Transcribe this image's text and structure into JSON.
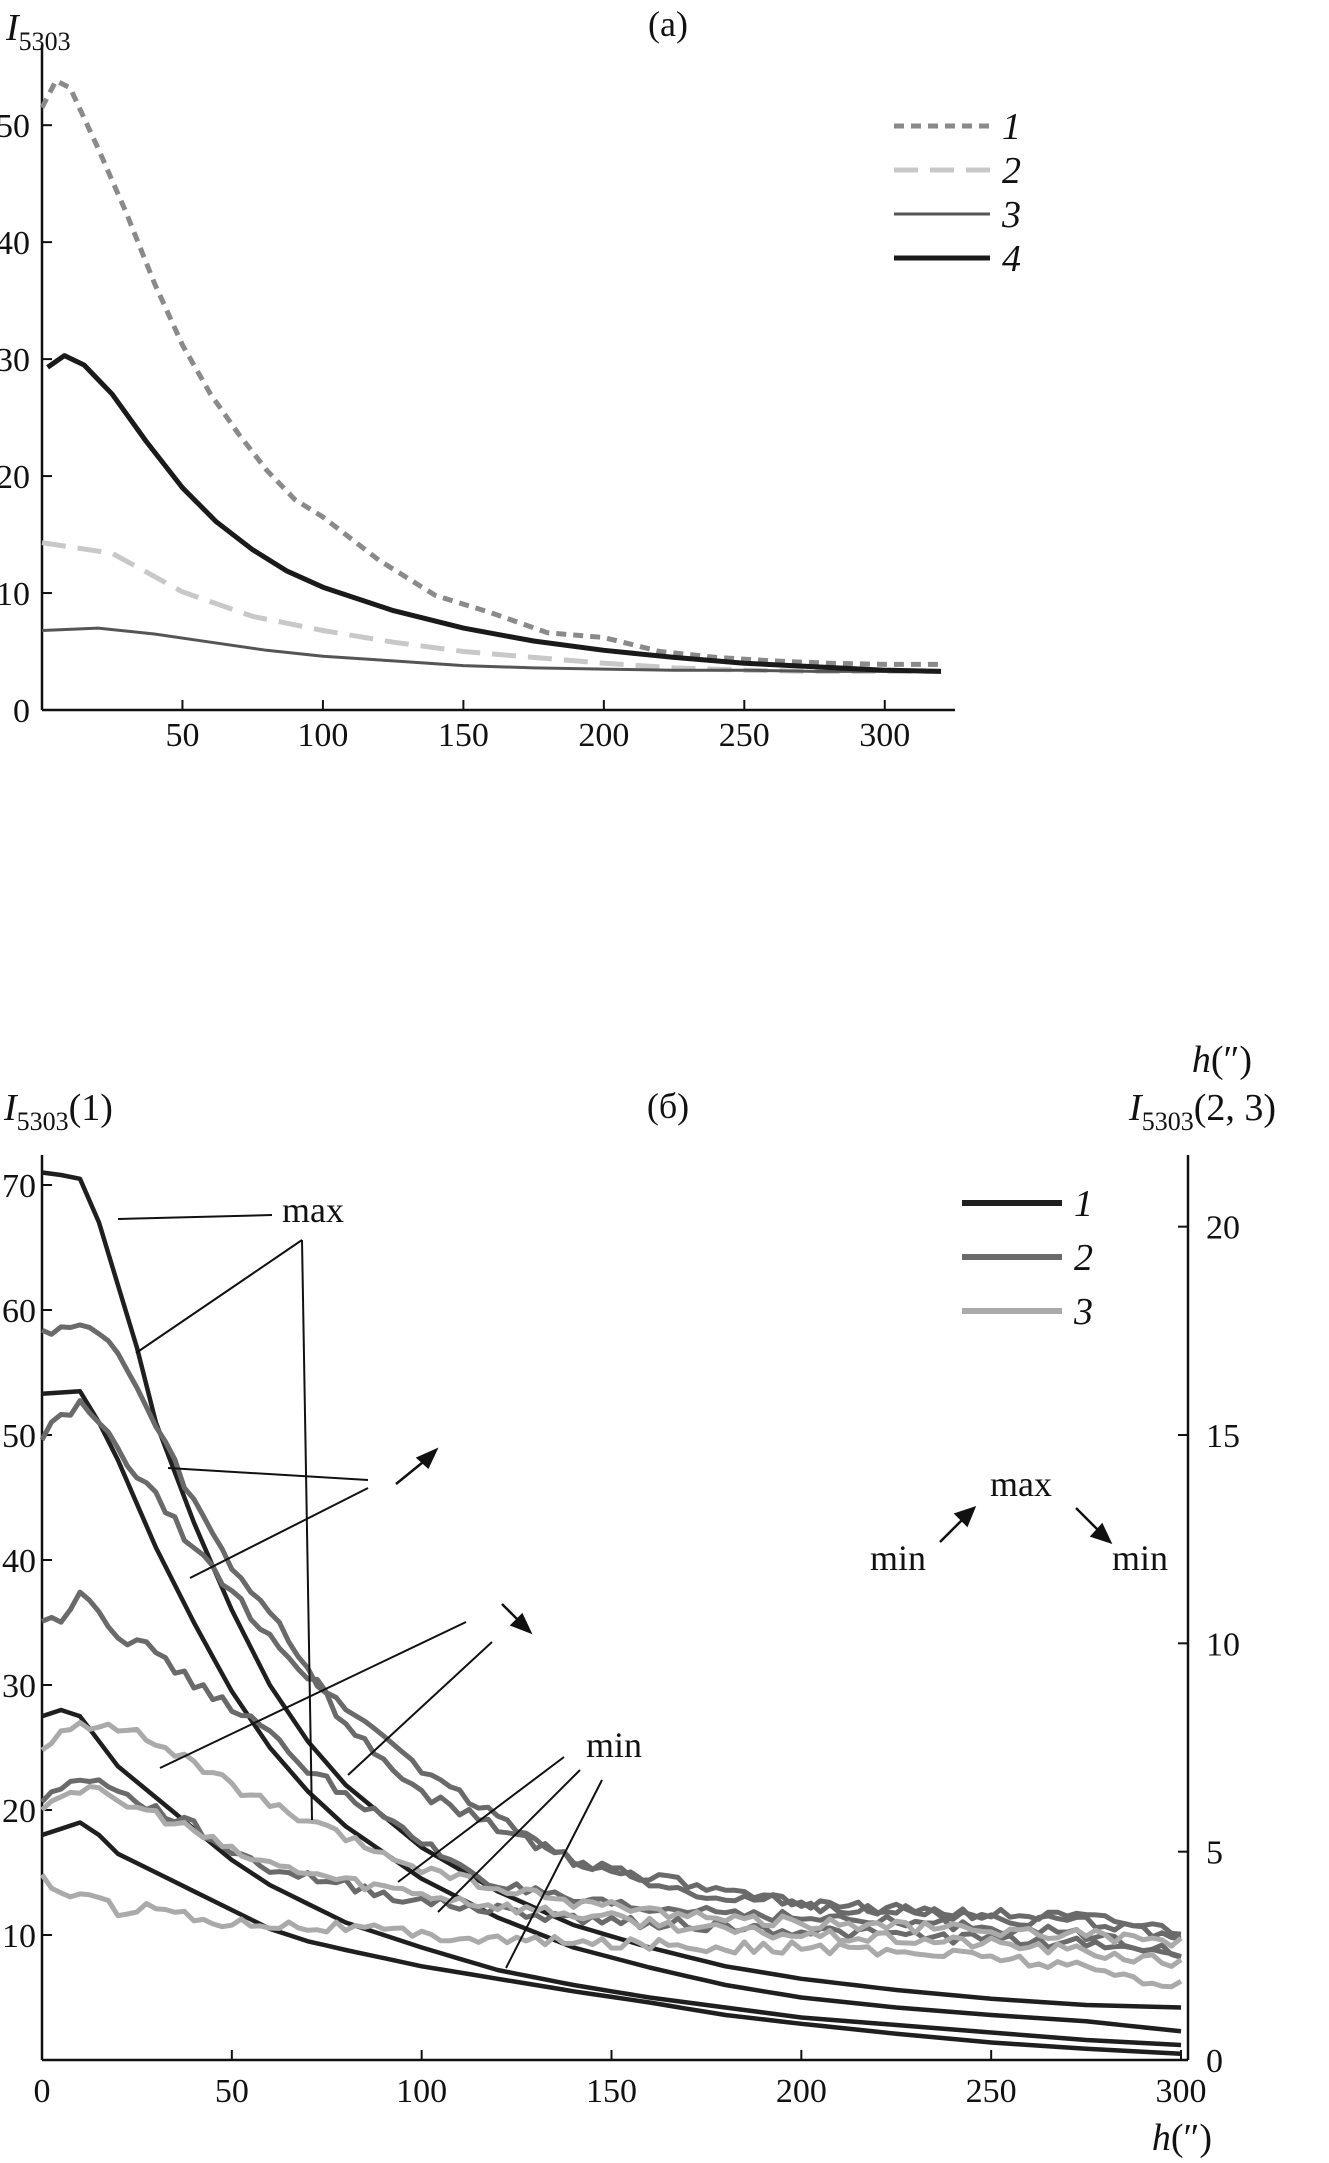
{
  "chart_data": [
    {
      "type": "line",
      "panel_label": "(a)",
      "ylabel_main": "I",
      "ylabel_sub": "5303",
      "xlabel_main": "h",
      "xlabel_unit": "(″)",
      "xlim": [
        0,
        325
      ],
      "ylim": [
        0,
        56
      ],
      "xticks": [
        50,
        100,
        150,
        200,
        250,
        300
      ],
      "yticks": [
        0,
        10,
        20,
        30,
        40,
        50
      ],
      "legend_position": "top-right",
      "series": [
        {
          "name": "1",
          "color": "#8a8a8a",
          "dash": "10,7",
          "width": 5,
          "x": [
            0,
            5,
            10,
            20,
            30,
            40,
            50,
            60,
            70,
            80,
            90,
            100,
            120,
            140,
            160,
            180,
            200,
            220,
            240,
            260,
            280,
            300,
            320
          ],
          "y": [
            51.5,
            53.8,
            53.2,
            48,
            42.5,
            36.5,
            31.2,
            27,
            23.6,
            20.5,
            18,
            16.5,
            12.8,
            9.8,
            8.3,
            6.6,
            6.2,
            5,
            4.5,
            4.2,
            4.0,
            3.9,
            3.9
          ]
        },
        {
          "name": "2",
          "color": "#c8c8c8",
          "dash": "24,12",
          "width": 5,
          "x": [
            0,
            25,
            50,
            75,
            100,
            125,
            150,
            175,
            200,
            225,
            250,
            275,
            300,
            320
          ],
          "y": [
            14.3,
            13.4,
            10.1,
            8,
            6.8,
            5.8,
            5.0,
            4.5,
            4.0,
            3.6,
            3.4,
            3.3,
            3.3,
            3.3
          ]
        },
        {
          "name": "3",
          "color": "#555555",
          "dash": "",
          "width": 3,
          "x": [
            0,
            20,
            40,
            60,
            80,
            100,
            125,
            150,
            175,
            200,
            225,
            250,
            275,
            300,
            320
          ],
          "y": [
            6.8,
            7.0,
            6.5,
            5.8,
            5.1,
            4.6,
            4.2,
            3.8,
            3.6,
            3.5,
            3.4,
            3.4,
            3.3,
            3.3,
            3.3
          ]
        },
        {
          "name": "4",
          "color": "#1a1a1a",
          "dash": "",
          "width": 5,
          "x": [
            2,
            8,
            15,
            25,
            37,
            50,
            62,
            75,
            87,
            100,
            125,
            150,
            175,
            200,
            225,
            250,
            275,
            300,
            320
          ],
          "y": [
            29.3,
            30.3,
            29.5,
            27,
            23,
            19,
            16.1,
            13.7,
            11.9,
            10.5,
            8.5,
            7.0,
            5.9,
            5.1,
            4.5,
            4.0,
            3.7,
            3.4,
            3.3
          ]
        }
      ]
    },
    {
      "type": "line",
      "panel_label": "(б)",
      "ylabel_left_main": "I",
      "ylabel_left_sub": "5303",
      "ylabel_left_suffix": "(1)",
      "ylabel_right_main": "I",
      "ylabel_right_sub": "5303",
      "ylabel_right_suffix": "(2, 3)",
      "xlabel_main": "h",
      "xlabel_unit": "(″)",
      "xlim": [
        0,
        300
      ],
      "ylim_left": [
        0,
        72
      ],
      "ylim_right": [
        0,
        21.6
      ],
      "xticks": [
        0,
        50,
        100,
        150,
        200,
        250,
        300
      ],
      "yticks_left": [
        10,
        20,
        30,
        40,
        50,
        60,
        70
      ],
      "yticks_right": [
        0,
        5,
        10,
        15,
        20
      ],
      "legend_position": "top-right",
      "legend": [
        {
          "name": "1",
          "color": "#1f1f1f"
        },
        {
          "name": "2",
          "color": "#6a6a6a"
        },
        {
          "name": "3",
          "color": "#aaaaaa"
        }
      ],
      "annotations": [
        {
          "text": "max"
        },
        {
          "text": "min"
        },
        {
          "text": "max"
        },
        {
          "text": "min"
        },
        {
          "text": "min"
        }
      ],
      "series": [
        {
          "name": "1",
          "axis": "left",
          "color": "#1f1f1f",
          "x": [
            0,
            5,
            10,
            15,
            20,
            25,
            30,
            40,
            50,
            60,
            70,
            80,
            100,
            120,
            140,
            160,
            180,
            200,
            225,
            250,
            275,
            300
          ],
          "y": [
            71,
            70.8,
            70.5,
            67,
            62,
            57,
            51,
            43,
            36,
            30,
            25.5,
            22,
            17,
            13.5,
            10.8,
            9,
            7.5,
            6.5,
            5.6,
            4.9,
            4.4,
            4.2
          ]
        },
        {
          "name": "1",
          "axis": "left",
          "color": "#1f1f1f",
          "x": [
            0,
            5,
            10,
            15,
            20,
            30,
            40,
            50,
            60,
            70,
            80,
            100,
            120,
            140,
            160,
            180,
            200,
            225,
            250,
            275,
            300
          ],
          "y": [
            53.3,
            53.4,
            53.5,
            51,
            48,
            41,
            35,
            29.5,
            25,
            21.5,
            18.7,
            14.5,
            11.4,
            9,
            7.4,
            6,
            5,
            4.2,
            3.6,
            3.1,
            2.3
          ]
        },
        {
          "name": "1",
          "axis": "left",
          "color": "#1f1f1f",
          "x": [
            0,
            5,
            10,
            15,
            20,
            30,
            40,
            50,
            60,
            70,
            80,
            100,
            120,
            140,
            160,
            180,
            200,
            225,
            250,
            275,
            300
          ],
          "y": [
            27.5,
            28,
            27.5,
            25.5,
            23.5,
            21,
            18.5,
            16,
            14,
            12.5,
            11,
            9,
            7.2,
            6,
            5,
            4.2,
            3.4,
            2.8,
            2.2,
            1.6,
            1.2
          ]
        },
        {
          "name": "1",
          "axis": "left",
          "color": "#1f1f1f",
          "x": [
            0,
            5,
            10,
            15,
            20,
            30,
            40,
            50,
            60,
            70,
            80,
            100,
            120,
            140,
            160,
            180,
            200,
            225,
            250,
            275,
            300
          ],
          "y": [
            18,
            18.5,
            19,
            18,
            16.5,
            15,
            13.5,
            12,
            10.5,
            9.5,
            8.8,
            7.5,
            6.5,
            5.5,
            4.6,
            3.6,
            2.9,
            2.1,
            1.4,
            0.9,
            0.5
          ]
        },
        {
          "name": "2",
          "axis": "right",
          "color": "#6a6a6a",
          "x": [
            0,
            5,
            10,
            15,
            20,
            30,
            40,
            50,
            60,
            70,
            80,
            100,
            120,
            140,
            160,
            180,
            200,
            225,
            250,
            275,
            300
          ],
          "y": [
            17.5,
            17.6,
            17.6,
            17.4,
            17.0,
            15.2,
            13.4,
            11.8,
            10.8,
            9.4,
            8.0,
            6.4,
            5.6,
            4.8,
            4.3,
            3.9,
            3.8,
            3.6,
            3.5,
            3.4,
            3.1
          ]
        },
        {
          "name": "2",
          "axis": "right",
          "color": "#6a6a6a",
          "x": [
            0,
            5,
            10,
            15,
            20,
            30,
            40,
            50,
            60,
            70,
            80,
            100,
            120,
            140,
            160,
            180,
            200,
            225,
            250,
            275,
            300
          ],
          "y": [
            15.0,
            15.4,
            15.7,
            15.3,
            14.6,
            13.5,
            12.3,
            11.2,
            10.2,
            9.2,
            8.5,
            7.0,
            5.8,
            4.8,
            4.4,
            4.0,
            3.7,
            3.6,
            3.4,
            3.3,
            3.0
          ]
        },
        {
          "name": "2",
          "axis": "right",
          "color": "#6a6a6a",
          "x": [
            0,
            5,
            10,
            15,
            20,
            30,
            40,
            50,
            60,
            70,
            80,
            100,
            120,
            140,
            160,
            180,
            200,
            225,
            250,
            275,
            300
          ],
          "y": [
            10.5,
            10.6,
            11.3,
            10.8,
            10.2,
            9.8,
            9.0,
            8.5,
            7.8,
            7.0,
            6.4,
            5.2,
            4.2,
            3.8,
            3.6,
            3.6,
            3.4,
            3.3,
            3.2,
            3.0,
            2.6
          ]
        },
        {
          "name": "2",
          "axis": "right",
          "color": "#6a6a6a",
          "x": [
            0,
            5,
            10,
            15,
            20,
            30,
            40,
            50,
            60,
            70,
            80,
            100,
            120,
            140,
            160,
            180,
            200,
            225,
            250,
            275,
            300
          ],
          "y": [
            6.3,
            6.5,
            6.7,
            6.8,
            6.4,
            6.0,
            5.6,
            5.0,
            4.6,
            4.4,
            4.2,
            3.8,
            3.6,
            3.4,
            3.3,
            3.2,
            3.1,
            3.0,
            2.9,
            2.8,
            2.6
          ]
        },
        {
          "name": "3",
          "axis": "right",
          "color": "#aaaaaa",
          "x": [
            0,
            5,
            10,
            15,
            20,
            30,
            40,
            50,
            60,
            70,
            80,
            100,
            120,
            140,
            160,
            180,
            200,
            225,
            250,
            275,
            300
          ],
          "y": [
            7.4,
            7.8,
            8.0,
            8.1,
            8.0,
            7.6,
            7.1,
            6.6,
            6.1,
            5.7,
            5.3,
            4.6,
            4.1,
            3.8,
            3.6,
            3.4,
            3.3,
            3.2,
            3.1,
            3.0,
            2.8
          ]
        },
        {
          "name": "3",
          "axis": "right",
          "color": "#aaaaaa",
          "x": [
            0,
            5,
            10,
            15,
            20,
            30,
            40,
            50,
            60,
            70,
            80,
            100,
            120,
            140,
            160,
            180,
            200,
            225,
            250,
            275,
            300
          ],
          "y": [
            6.1,
            6.4,
            6.5,
            6.4,
            6.2,
            5.9,
            5.5,
            5.0,
            4.7,
            4.5,
            4.3,
            4.0,
            3.7,
            3.5,
            3.3,
            3.1,
            3.0,
            2.9,
            2.8,
            2.6,
            2.3
          ]
        },
        {
          "name": "3",
          "axis": "right",
          "color": "#aaaaaa",
          "x": [
            0,
            5,
            10,
            15,
            20,
            30,
            40,
            50,
            60,
            70,
            80,
            100,
            120,
            140,
            160,
            180,
            200,
            225,
            250,
            275,
            300
          ],
          "y": [
            4.4,
            4.0,
            4.0,
            3.8,
            3.6,
            3.7,
            3.4,
            3.3,
            3.3,
            3.2,
            3.2,
            3.0,
            2.9,
            2.8,
            2.8,
            2.7,
            2.7,
            2.6,
            2.5,
            2.2,
            1.8
          ]
        }
      ]
    }
  ]
}
